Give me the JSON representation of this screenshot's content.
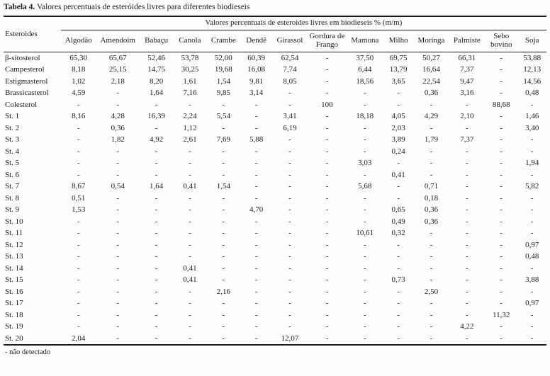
{
  "title": {
    "label": "Tabela 4.",
    "text": " Valores percentuais de esteróides livres para diferentes biodieseis"
  },
  "table": {
    "corner_header": "Esteroides",
    "span_header": "Valores percentuais de esteroides livres em biodieseis % (m/m)",
    "columns": [
      "Algodão",
      "Amendoim",
      "Babaçu",
      "Canola",
      "Crambe",
      "Dendê",
      "Girassol",
      "Gordura de Frango",
      "Mamona",
      "Milho",
      "Moringa",
      "Palmiste",
      "Sebo bovino",
      "Soja"
    ],
    "missing_marker": "-",
    "rows": [
      {
        "name": "β-sitosterol",
        "values": [
          "65,30",
          "65,67",
          "52,46",
          "53,78",
          "52,00",
          "60,39",
          "62,54",
          "-",
          "37,50",
          "69,75",
          "50,27",
          "66,31",
          "-",
          "53,88"
        ]
      },
      {
        "name": "Campesterol",
        "values": [
          "8,18",
          "25,15",
          "14,75",
          "30,25",
          "19,68",
          "16,08",
          "7,74",
          "-",
          "6,44",
          "13,79",
          "16,64",
          "7,37",
          "-",
          "12,13"
        ]
      },
      {
        "name": "Estigmasterol",
        "values": [
          "1,02",
          "2,18",
          "8,20",
          "1,61",
          "1,54",
          "9,81",
          "8,05",
          "-",
          "18,56",
          "3,65",
          "22,54",
          "9,47",
          "-",
          "14,56"
        ]
      },
      {
        "name": "Brassicasterol",
        "values": [
          "4,59",
          "-",
          "1,64",
          "7,16",
          "9,85",
          "3,14",
          "-",
          "-",
          "-",
          "-",
          "0,36",
          "3,16",
          "-",
          "0,48"
        ]
      },
      {
        "name": "Colesterol",
        "values": [
          "-",
          "-",
          "-",
          "-",
          "-",
          "-",
          "-",
          "100",
          "-",
          "-",
          "-",
          "-",
          "88,68",
          "-"
        ]
      },
      {
        "name": "St. 1",
        "values": [
          "8,16",
          "4,28",
          "16,39",
          "2,24",
          "5,54",
          "-",
          "3,41",
          "-",
          "18,18",
          "4,05",
          "4,29",
          "2,10",
          "-",
          "1,46"
        ]
      },
      {
        "name": "St. 2",
        "values": [
          "-",
          "0,36",
          "-",
          "1,12",
          "-",
          "-",
          "6,19",
          "-",
          "-",
          "2,03",
          "-",
          "-",
          "-",
          "3,40"
        ]
      },
      {
        "name": "St. 3",
        "values": [
          "-",
          "1,82",
          "4,92",
          "2,61",
          "7,69",
          "5,88",
          "-",
          "-",
          "-",
          "3,89",
          "1,79",
          "7,37",
          "-",
          "-"
        ]
      },
      {
        "name": "St. 4",
        "values": [
          "-",
          "-",
          "-",
          "-",
          "-",
          "-",
          "-",
          "-",
          "-",
          "0,24",
          "-",
          "-",
          "-",
          "-"
        ]
      },
      {
        "name": "St. 5",
        "values": [
          "-",
          "-",
          "-",
          "-",
          "-",
          "-",
          "-",
          "-",
          "3,03",
          "-",
          "-",
          "-",
          "-",
          "1,94"
        ]
      },
      {
        "name": "St. 6",
        "values": [
          "-",
          "-",
          "-",
          "-",
          "-",
          "-",
          "-",
          "-",
          "-",
          "0,41",
          "-",
          "-",
          "-",
          "-"
        ]
      },
      {
        "name": "St. 7",
        "values": [
          "8,67",
          "0,54",
          "1,64",
          "0,41",
          "1,54",
          "-",
          "-",
          "-",
          "5,68",
          "-",
          "0,71",
          "-",
          "-",
          "5,82"
        ]
      },
      {
        "name": "St. 8",
        "values": [
          "0,51",
          "-",
          "-",
          "-",
          "-",
          "-",
          "-",
          "-",
          "-",
          "-",
          "0,18",
          "-",
          "-",
          "-"
        ]
      },
      {
        "name": "St. 9",
        "values": [
          "1,53",
          "-",
          "-",
          "-",
          "-",
          "4,70",
          "-",
          "-",
          "-",
          "0,65",
          "0,36",
          "-",
          "-",
          "-"
        ]
      },
      {
        "name": "St. 10",
        "values": [
          "-",
          "-",
          "-",
          "-",
          "-",
          "-",
          "-",
          "-",
          "-",
          "0,49",
          "0,36",
          "-",
          "-",
          "-"
        ]
      },
      {
        "name": "St. 11",
        "values": [
          "-",
          "-",
          "-",
          "-",
          "-",
          "-",
          "-",
          "-",
          "10,61",
          "0,32",
          "-",
          "-",
          "-",
          "-"
        ]
      },
      {
        "name": "St. 12",
        "values": [
          "-",
          "-",
          "-",
          "-",
          "-",
          "-",
          "-",
          "-",
          "-",
          "-",
          "-",
          "-",
          "-",
          "0,97"
        ]
      },
      {
        "name": "St. 13",
        "values": [
          "-",
          "-",
          "-",
          "-",
          "-",
          "-",
          "-",
          "-",
          "-",
          "-",
          "-",
          "-",
          "-",
          "0,48"
        ]
      },
      {
        "name": "St. 14",
        "values": [
          "-",
          "-",
          "-",
          "0,41",
          "-",
          "-",
          "-",
          "-",
          "-",
          "-",
          "-",
          "-",
          "-",
          "-"
        ]
      },
      {
        "name": "St. 15",
        "values": [
          "-",
          "-",
          "-",
          "0,41",
          "-",
          "-",
          "-",
          "-",
          "-",
          "0,73",
          "-",
          "-",
          "-",
          "3,88"
        ]
      },
      {
        "name": "St. 16",
        "values": [
          "-",
          "-",
          "-",
          "-",
          "2,16",
          "-",
          "-",
          "-",
          "-",
          "-",
          "2,50",
          "-",
          "-",
          "-"
        ]
      },
      {
        "name": "St. 17",
        "values": [
          "-",
          "-",
          "-",
          "-",
          "-",
          "-",
          "-",
          "-",
          "-",
          "-",
          "-",
          "-",
          "-",
          "0,97"
        ]
      },
      {
        "name": "St. 18",
        "values": [
          "-",
          "-",
          "-",
          "-",
          "-",
          "-",
          "-",
          "-",
          "-",
          "-",
          "-",
          "-",
          "11,32",
          "-"
        ]
      },
      {
        "name": "St. 19",
        "values": [
          "-",
          "-",
          "-",
          "-",
          "-",
          "-",
          "-",
          "-",
          "-",
          "-",
          "-",
          "4,22",
          "-",
          "-"
        ]
      },
      {
        "name": "St. 20",
        "values": [
          "2,04",
          "-",
          "-",
          "-",
          "-",
          "-",
          "12,07",
          "-",
          "-",
          "-",
          "-",
          "-",
          "-",
          "-"
        ]
      }
    ]
  },
  "footnote": "- não detectado"
}
